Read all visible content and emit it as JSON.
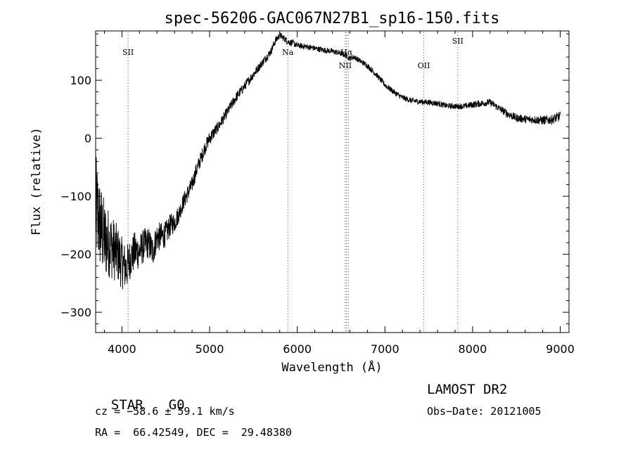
{
  "chart_data": {
    "type": "line",
    "title": "spec-56206-GAC067N27B1_sp16-150.fits",
    "xlabel": "Wavelength (Å)",
    "ylabel": "Flux (relative)",
    "xlim": [
      3700,
      9100
    ],
    "ylim": [
      -335,
      185
    ],
    "xticks": [
      4000,
      5000,
      6000,
      7000,
      8000,
      9000
    ],
    "yticks": [
      -300,
      -200,
      -100,
      0,
      100
    ],
    "grid": false,
    "series": [
      {
        "x": [
          3700,
          3750,
          3800,
          3850,
          3900,
          3950,
          4000,
          4050,
          4100,
          4150,
          4200,
          4250,
          4300,
          4350,
          4400,
          4450,
          4500,
          4550,
          4600,
          4650,
          4700,
          4750,
          4800,
          4850,
          4900,
          4950,
          5000,
          5100,
          5200,
          5300,
          5400,
          5500,
          5600,
          5700,
          5750,
          5800,
          5850,
          5900,
          5950,
          6000,
          6100,
          6200,
          6300,
          6400,
          6500,
          6550,
          6600,
          6650,
          6700,
          6800,
          6900,
          7000,
          7100,
          7200,
          7300,
          7400,
          7500,
          7600,
          7700,
          7800,
          7900,
          8000,
          8100,
          8200,
          8300,
          8400,
          8500,
          8600,
          8700,
          8800,
          8900,
          9000
        ],
        "y": [
          -120,
          -150,
          -175,
          -180,
          -190,
          -200,
          -215,
          -225,
          -205,
          -195,
          -195,
          -185,
          -180,
          -195,
          -170,
          -170,
          -165,
          -150,
          -145,
          -130,
          -110,
          -95,
          -80,
          -55,
          -35,
          -15,
          0,
          20,
          45,
          70,
          90,
          110,
          130,
          150,
          168,
          178,
          172,
          166,
          164,
          160,
          158,
          155,
          152,
          150,
          146,
          143,
          138,
          140,
          135,
          125,
          110,
          92,
          80,
          70,
          65,
          63,
          62,
          60,
          56,
          55,
          55,
          58,
          60,
          62,
          52,
          42,
          35,
          33,
          32,
          31,
          32,
          38
        ],
        "noise": [
          95,
          80,
          70,
          60,
          55,
          50,
          45,
          40,
          35,
          35,
          30,
          30,
          28,
          28,
          25,
          25,
          22,
          20,
          18,
          16,
          15,
          15,
          14,
          14,
          13,
          12,
          12,
          10,
          9,
          9,
          8,
          8,
          7,
          7,
          7,
          6,
          6,
          6,
          6,
          5,
          5,
          5,
          5,
          5,
          5,
          5,
          5,
          5,
          5,
          5,
          5,
          5,
          5,
          5,
          5,
          5,
          5,
          5,
          5,
          5,
          5,
          6,
          6,
          6,
          6,
          7,
          7,
          7,
          7,
          8,
          8,
          9
        ]
      }
    ],
    "line_markers": [
      {
        "x": 4070,
        "label": "SII",
        "pos": "top"
      },
      {
        "x": 5892,
        "label": "Na",
        "pos": "top"
      },
      {
        "x": 6548,
        "label": "NII",
        "pos": "mid"
      },
      {
        "x": 6563,
        "label": "Hα",
        "pos": "top"
      },
      {
        "x": 6584,
        "label": "",
        "pos": "none"
      },
      {
        "x": 7444,
        "label": "OII",
        "pos": "mid"
      },
      {
        "x": 7831,
        "label": "SII",
        "pos": "upper"
      }
    ]
  },
  "info": {
    "class_label": "STAR",
    "subclass": "G0",
    "survey": "LAMOST DR2",
    "cz": "cz = −58.6 ± 59.1 km/s",
    "obs_date": "Obs−Date: 20121005",
    "coords": "RA =  66.42549, DEC =  29.48380"
  }
}
